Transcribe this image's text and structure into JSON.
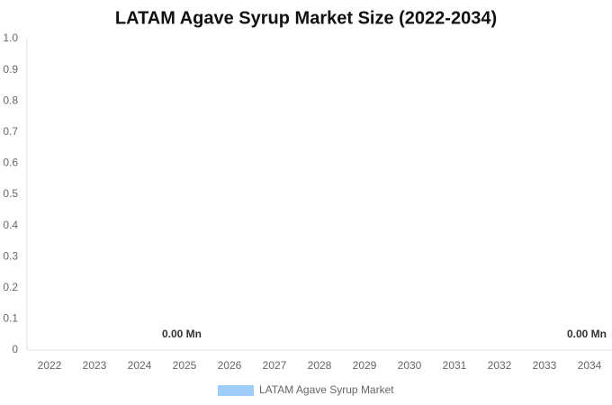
{
  "chart_data": {
    "type": "bar",
    "title": "LATAM Agave Syrup Market Size (2022-2034)",
    "categories": [
      "2022",
      "2023",
      "2024",
      "2025",
      "2026",
      "2027",
      "2028",
      "2029",
      "2030",
      "2031",
      "2032",
      "2033",
      "2034"
    ],
    "series": [
      {
        "name": "LATAM Agave Syrup Market",
        "color": "#a0cdf7",
        "values": [
          0,
          0,
          0,
          0,
          0,
          0,
          0,
          0,
          0,
          0,
          0,
          0,
          0
        ],
        "value_labels": [
          null,
          null,
          null,
          "0.00 Mn",
          null,
          null,
          null,
          null,
          null,
          null,
          null,
          null,
          "0.00 Mn"
        ]
      }
    ],
    "ylim": [
      0,
      1
    ],
    "yticks": [
      0,
      0.1,
      0.2,
      0.3,
      0.4,
      0.5,
      0.6,
      0.7,
      0.8,
      0.9,
      {
        "value": 1,
        "label": "1.0"
      }
    ],
    "grid": false,
    "legend": "bottom"
  }
}
